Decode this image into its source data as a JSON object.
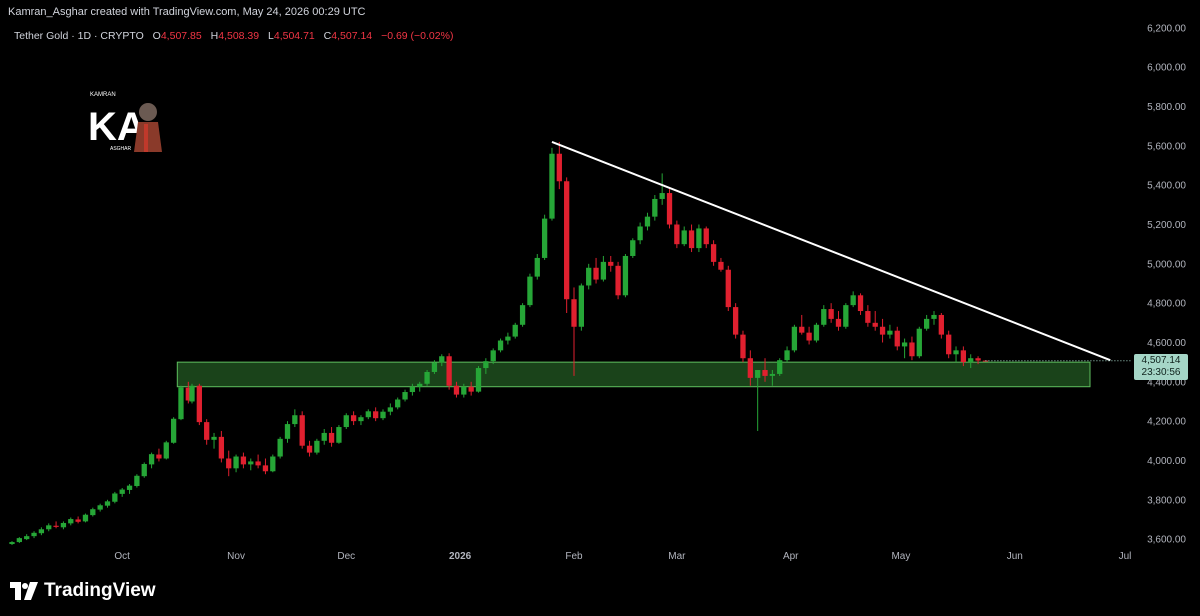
{
  "header": {
    "attribution": "Kamran_Asghar created with TradingView.com, May 24, 2026 00:29 UTC",
    "symbol": "Tether Gold · 1D · CRYPTO",
    "ohlc": [
      {
        "key": "O",
        "value": "4,507.85"
      },
      {
        "key": "H",
        "value": "4,508.39"
      },
      {
        "key": "L",
        "value": "4,504.71"
      },
      {
        "key": "C",
        "value": "4,507.14"
      }
    ],
    "change": "−0.69 (−0.02%)"
  },
  "watermark": {
    "letters": "KA",
    "top_text": "KAMRAN",
    "bottom_text": "ASGHAR"
  },
  "brand": {
    "name": "TradingView",
    "icon": "tradingview-logo-icon"
  },
  "price_tag": {
    "price": "4,507.14",
    "countdown": "23:30:56",
    "color": "#a5d6c7"
  },
  "colors": {
    "up": "#26a637",
    "down": "#e0202f",
    "background": "#000000",
    "zone": "#2f7a2f",
    "trendline": "#ffffff"
  },
  "chart_data": {
    "type": "candlestick",
    "title": "Tether Gold · 1D · CRYPTO",
    "x_ticks": [
      {
        "date": "2025-10-01",
        "label": "Oct"
      },
      {
        "date": "2025-11-01",
        "label": "Nov"
      },
      {
        "date": "2025-12-01",
        "label": "Dec"
      },
      {
        "date": "2026-01-01",
        "label": "2026"
      },
      {
        "date": "2026-02-01",
        "label": "Feb"
      },
      {
        "date": "2026-03-01",
        "label": "Mar"
      },
      {
        "date": "2026-04-01",
        "label": "Apr"
      },
      {
        "date": "2026-05-01",
        "label": "May"
      },
      {
        "date": "2026-06-01",
        "label": "Jun"
      },
      {
        "date": "2026-07-01",
        "label": "Jul"
      }
    ],
    "y_ticks": [
      "6,200.00",
      "6,000.00",
      "5,800.00",
      "5,600.00",
      "5,400.00",
      "5,200.00",
      "5,000.00",
      "4,800.00",
      "4,600.00",
      "4,400.00",
      "4,200.00",
      "4,000.00",
      "3,800.00",
      "3,600.00"
    ],
    "ylim": [
      3570,
      6230
    ],
    "xlim": [
      "2025-09-01",
      "2026-07-01"
    ],
    "support_zone": {
      "from": "2025-10-16",
      "to": "2026-06-30",
      "low": 4375,
      "high": 4500
    },
    "trendline": {
      "from": {
        "date": "2026-01-26",
        "price": 5620
      },
      "to": {
        "date": "2026-06-27",
        "price": 4510
      }
    },
    "ohlc": [
      [
        "2025-09-01",
        3575,
        3590,
        3570,
        3585
      ],
      [
        "2025-09-03",
        3585,
        3610,
        3580,
        3605
      ],
      [
        "2025-09-05",
        3600,
        3625,
        3595,
        3615
      ],
      [
        "2025-09-07",
        3615,
        3640,
        3605,
        3632
      ],
      [
        "2025-09-09",
        3630,
        3660,
        3620,
        3650
      ],
      [
        "2025-09-11",
        3650,
        3680,
        3640,
        3670
      ],
      [
        "2025-09-13",
        3668,
        3690,
        3655,
        3662
      ],
      [
        "2025-09-15",
        3660,
        3690,
        3650,
        3682
      ],
      [
        "2025-09-17",
        3680,
        3710,
        3670,
        3702
      ],
      [
        "2025-09-19",
        3700,
        3715,
        3680,
        3688
      ],
      [
        "2025-09-21",
        3690,
        3730,
        3685,
        3724
      ],
      [
        "2025-09-23",
        3722,
        3760,
        3715,
        3752
      ],
      [
        "2025-09-25",
        3750,
        3780,
        3740,
        3772
      ],
      [
        "2025-09-27",
        3770,
        3800,
        3760,
        3792
      ],
      [
        "2025-09-29",
        3790,
        3840,
        3782,
        3832
      ],
      [
        "2025-10-01",
        3830,
        3860,
        3815,
        3852
      ],
      [
        "2025-10-03",
        3850,
        3880,
        3830,
        3872
      ],
      [
        "2025-10-05",
        3870,
        3930,
        3862,
        3922
      ],
      [
        "2025-10-07",
        3920,
        3990,
        3912,
        3982
      ],
      [
        "2025-10-09",
        3980,
        4040,
        3960,
        4032
      ],
      [
        "2025-10-11",
        4030,
        4060,
        3995,
        4010
      ],
      [
        "2025-10-13",
        4010,
        4100,
        4005,
        4092
      ],
      [
        "2025-10-15",
        4090,
        4220,
        4085,
        4212
      ],
      [
        "2025-10-17",
        4210,
        4380,
        4205,
        4372
      ],
      [
        "2025-10-19",
        4370,
        4400,
        4290,
        4305
      ],
      [
        "2025-10-20",
        4300,
        4390,
        4290,
        4380
      ],
      [
        "2025-10-22",
        4380,
        4390,
        4180,
        4195
      ],
      [
        "2025-10-24",
        4195,
        4210,
        4080,
        4105
      ],
      [
        "2025-10-26",
        4105,
        4140,
        4060,
        4120
      ],
      [
        "2025-10-28",
        4120,
        4150,
        3990,
        4010
      ],
      [
        "2025-10-30",
        4010,
        4050,
        3920,
        3960
      ],
      [
        "2025-11-01",
        3960,
        4030,
        3940,
        4020
      ],
      [
        "2025-11-03",
        4020,
        4040,
        3960,
        3980
      ],
      [
        "2025-11-05",
        3980,
        4010,
        3950,
        3995
      ],
      [
        "2025-11-07",
        3995,
        4030,
        3960,
        3975
      ],
      [
        "2025-11-09",
        3975,
        4010,
        3930,
        3945
      ],
      [
        "2025-11-11",
        3945,
        4030,
        3940,
        4020
      ],
      [
        "2025-11-13",
        4020,
        4120,
        4010,
        4110
      ],
      [
        "2025-11-15",
        4110,
        4200,
        4090,
        4185
      ],
      [
        "2025-11-17",
        4185,
        4260,
        4170,
        4230
      ],
      [
        "2025-11-19",
        4230,
        4250,
        4060,
        4075
      ],
      [
        "2025-11-21",
        4075,
        4100,
        4020,
        4040
      ],
      [
        "2025-11-23",
        4040,
        4110,
        4030,
        4100
      ],
      [
        "2025-11-25",
        4100,
        4160,
        4080,
        4140
      ],
      [
        "2025-11-27",
        4140,
        4170,
        4070,
        4090
      ],
      [
        "2025-11-29",
        4090,
        4180,
        4085,
        4170
      ],
      [
        "2025-12-01",
        4170,
        4240,
        4160,
        4230
      ],
      [
        "2025-12-03",
        4230,
        4250,
        4180,
        4200
      ],
      [
        "2025-12-05",
        4200,
        4230,
        4180,
        4220
      ],
      [
        "2025-12-07",
        4220,
        4260,
        4210,
        4250
      ],
      [
        "2025-12-09",
        4250,
        4270,
        4200,
        4215
      ],
      [
        "2025-12-11",
        4215,
        4260,
        4205,
        4248
      ],
      [
        "2025-12-13",
        4248,
        4290,
        4230,
        4270
      ],
      [
        "2025-12-15",
        4270,
        4320,
        4260,
        4310
      ],
      [
        "2025-12-17",
        4310,
        4360,
        4300,
        4348
      ],
      [
        "2025-12-19",
        4348,
        4390,
        4330,
        4375
      ],
      [
        "2025-12-21",
        4375,
        4400,
        4350,
        4390
      ],
      [
        "2025-12-23",
        4390,
        4460,
        4380,
        4450
      ],
      [
        "2025-12-25",
        4450,
        4510,
        4440,
        4498
      ],
      [
        "2025-12-27",
        4498,
        4540,
        4480,
        4530
      ],
      [
        "2025-12-29",
        4530,
        4545,
        4360,
        4380
      ],
      [
        "2025-12-31",
        4380,
        4400,
        4320,
        4335
      ],
      [
        "2026-01-02",
        4335,
        4390,
        4320,
        4375
      ],
      [
        "2026-01-04",
        4375,
        4400,
        4330,
        4350
      ],
      [
        "2026-01-06",
        4350,
        4480,
        4345,
        4470
      ],
      [
        "2026-01-08",
        4470,
        4520,
        4440,
        4505
      ],
      [
        "2026-01-10",
        4505,
        4570,
        4490,
        4560
      ],
      [
        "2026-01-12",
        4560,
        4620,
        4550,
        4610
      ],
      [
        "2026-01-14",
        4610,
        4650,
        4590,
        4630
      ],
      [
        "2026-01-16",
        4630,
        4700,
        4620,
        4690
      ],
      [
        "2026-01-18",
        4690,
        4800,
        4680,
        4790
      ],
      [
        "2026-01-20",
        4790,
        4950,
        4780,
        4935
      ],
      [
        "2026-01-22",
        4935,
        5050,
        4920,
        5030
      ],
      [
        "2026-01-24",
        5030,
        5250,
        5020,
        5230
      ],
      [
        "2026-01-26",
        5230,
        5590,
        5220,
        5560
      ],
      [
        "2026-01-28",
        5560,
        5620,
        5380,
        5420
      ],
      [
        "2026-01-30",
        5420,
        5440,
        4750,
        4820
      ],
      [
        "2026-02-01",
        4820,
        4880,
        4430,
        4680
      ],
      [
        "2026-02-03",
        4680,
        4900,
        4660,
        4890
      ],
      [
        "2026-02-05",
        4890,
        5000,
        4870,
        4980
      ],
      [
        "2026-02-07",
        4980,
        5030,
        4900,
        4920
      ],
      [
        "2026-02-09",
        4920,
        5040,
        4910,
        5010
      ],
      [
        "2026-02-11",
        5010,
        5040,
        4960,
        4990
      ],
      [
        "2026-02-13",
        4990,
        5010,
        4820,
        4840
      ],
      [
        "2026-02-15",
        4840,
        5050,
        4830,
        5040
      ],
      [
        "2026-02-17",
        5040,
        5130,
        5030,
        5120
      ],
      [
        "2026-02-19",
        5120,
        5210,
        5100,
        5190
      ],
      [
        "2026-02-21",
        5190,
        5260,
        5170,
        5240
      ],
      [
        "2026-02-23",
        5240,
        5350,
        5220,
        5330
      ],
      [
        "2026-02-25",
        5330,
        5460,
        5300,
        5360
      ],
      [
        "2026-02-27",
        5360,
        5380,
        5180,
        5200
      ],
      [
        "2026-03-01",
        5200,
        5220,
        5080,
        5100
      ],
      [
        "2026-03-03",
        5100,
        5190,
        5090,
        5170
      ],
      [
        "2026-03-05",
        5170,
        5200,
        5060,
        5080
      ],
      [
        "2026-03-07",
        5080,
        5200,
        5060,
        5180
      ],
      [
        "2026-03-09",
        5180,
        5190,
        5080,
        5100
      ],
      [
        "2026-03-11",
        5100,
        5120,
        4990,
        5010
      ],
      [
        "2026-03-13",
        5010,
        5030,
        4960,
        4970
      ],
      [
        "2026-03-15",
        4970,
        4990,
        4760,
        4780
      ],
      [
        "2026-03-17",
        4780,
        4800,
        4620,
        4640
      ],
      [
        "2026-03-19",
        4640,
        4660,
        4500,
        4520
      ],
      [
        "2026-03-21",
        4520,
        4560,
        4380,
        4420
      ],
      [
        "2026-03-23",
        4420,
        4450,
        4150,
        4460
      ],
      [
        "2026-03-25",
        4460,
        4520,
        4400,
        4430
      ],
      [
        "2026-03-27",
        4430,
        4460,
        4380,
        4440
      ],
      [
        "2026-03-29",
        4440,
        4520,
        4430,
        4510
      ],
      [
        "2026-03-31",
        4510,
        4580,
        4500,
        4560
      ],
      [
        "2026-04-02",
        4560,
        4690,
        4550,
        4680
      ],
      [
        "2026-04-04",
        4680,
        4740,
        4640,
        4650
      ],
      [
        "2026-04-06",
        4650,
        4680,
        4590,
        4610
      ],
      [
        "2026-04-08",
        4610,
        4700,
        4600,
        4690
      ],
      [
        "2026-04-10",
        4690,
        4790,
        4680,
        4770
      ],
      [
        "2026-04-12",
        4770,
        4800,
        4700,
        4720
      ],
      [
        "2026-04-14",
        4720,
        4760,
        4660,
        4680
      ],
      [
        "2026-04-16",
        4680,
        4800,
        4670,
        4790
      ],
      [
        "2026-04-18",
        4790,
        4860,
        4780,
        4840
      ],
      [
        "2026-04-20",
        4840,
        4850,
        4740,
        4760
      ],
      [
        "2026-04-22",
        4760,
        4790,
        4680,
        4700
      ],
      [
        "2026-04-24",
        4700,
        4760,
        4660,
        4680
      ],
      [
        "2026-04-26",
        4680,
        4720,
        4600,
        4640
      ],
      [
        "2026-04-28",
        4640,
        4690,
        4620,
        4660
      ],
      [
        "2026-04-30",
        4660,
        4680,
        4560,
        4580
      ],
      [
        "2026-05-02",
        4580,
        4620,
        4520,
        4600
      ],
      [
        "2026-05-04",
        4600,
        4630,
        4510,
        4530
      ],
      [
        "2026-05-06",
        4530,
        4680,
        4520,
        4670
      ],
      [
        "2026-05-08",
        4670,
        4740,
        4660,
        4720
      ],
      [
        "2026-05-10",
        4720,
        4760,
        4690,
        4740
      ],
      [
        "2026-05-12",
        4740,
        4750,
        4620,
        4640
      ],
      [
        "2026-05-14",
        4640,
        4660,
        4520,
        4540
      ],
      [
        "2026-05-16",
        4540,
        4580,
        4500,
        4560
      ],
      [
        "2026-05-18",
        4560,
        4580,
        4480,
        4500
      ],
      [
        "2026-05-20",
        4500,
        4540,
        4470,
        4520
      ],
      [
        "2026-05-22",
        4520,
        4530,
        4490,
        4508
      ],
      [
        "2026-05-24",
        4508,
        4509,
        4505,
        4507
      ]
    ]
  }
}
